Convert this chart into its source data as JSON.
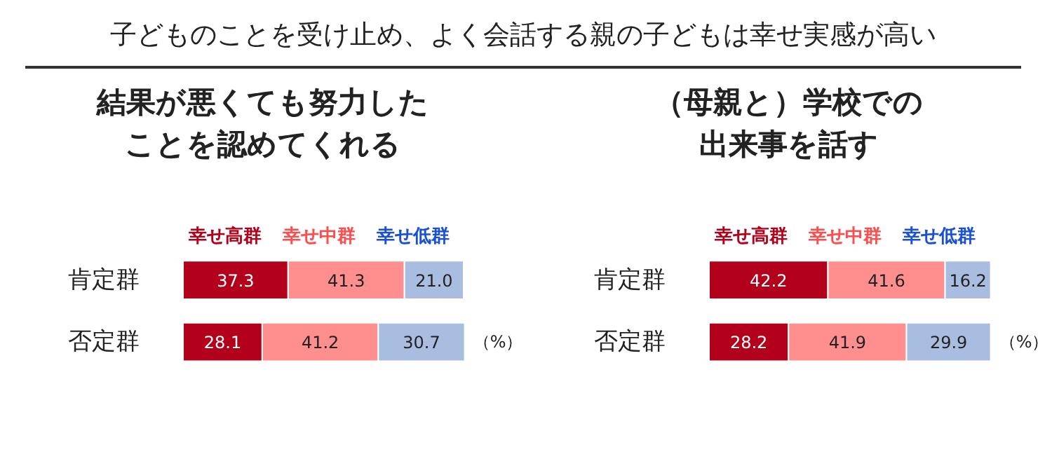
{
  "chart_data": [
    {
      "type": "bar",
      "orientation": "horizontal",
      "stacked": true,
      "data_labels": true,
      "legend": "top",
      "grid": false,
      "title": "結果が悪くても努力したことを認めてくれる",
      "annotations": [
        "子どものことを受け止め、よく会話する親の子どもは幸せ実感が高い",
        "（%）"
      ],
      "categories": [
        "肯定群",
        "否定群"
      ],
      "series": [
        {
          "name": "幸せ高群",
          "color": "#b3001b",
          "values": [
            37.3,
            28.1
          ]
        },
        {
          "name": "幸せ中群",
          "color": "#ff8f8f",
          "values": [
            41.3,
            41.2
          ]
        },
        {
          "name": "幸せ低群",
          "color": "#a9bde0",
          "values": [
            21.0,
            30.7
          ],
          "value_labels": [
            "21.0",
            "30.7"
          ]
        }
      ]
    },
    {
      "type": "bar",
      "orientation": "horizontal",
      "stacked": true,
      "data_labels": true,
      "legend": "top",
      "grid": false,
      "title": "（母親と）学校での出来事を話す",
      "annotations": [
        "（%）"
      ],
      "categories": [
        "肯定群",
        "否定群"
      ],
      "series": [
        {
          "name": "幸せ高群",
          "color": "#b3001b",
          "values": [
            42.2,
            28.2
          ]
        },
        {
          "name": "幸せ中群",
          "color": "#ff8f8f",
          "values": [
            41.6,
            41.9
          ]
        },
        {
          "name": "幸せ低群",
          "color": "#a9bde0",
          "values": [
            16.2,
            29.9
          ]
        }
      ]
    }
  ]
}
